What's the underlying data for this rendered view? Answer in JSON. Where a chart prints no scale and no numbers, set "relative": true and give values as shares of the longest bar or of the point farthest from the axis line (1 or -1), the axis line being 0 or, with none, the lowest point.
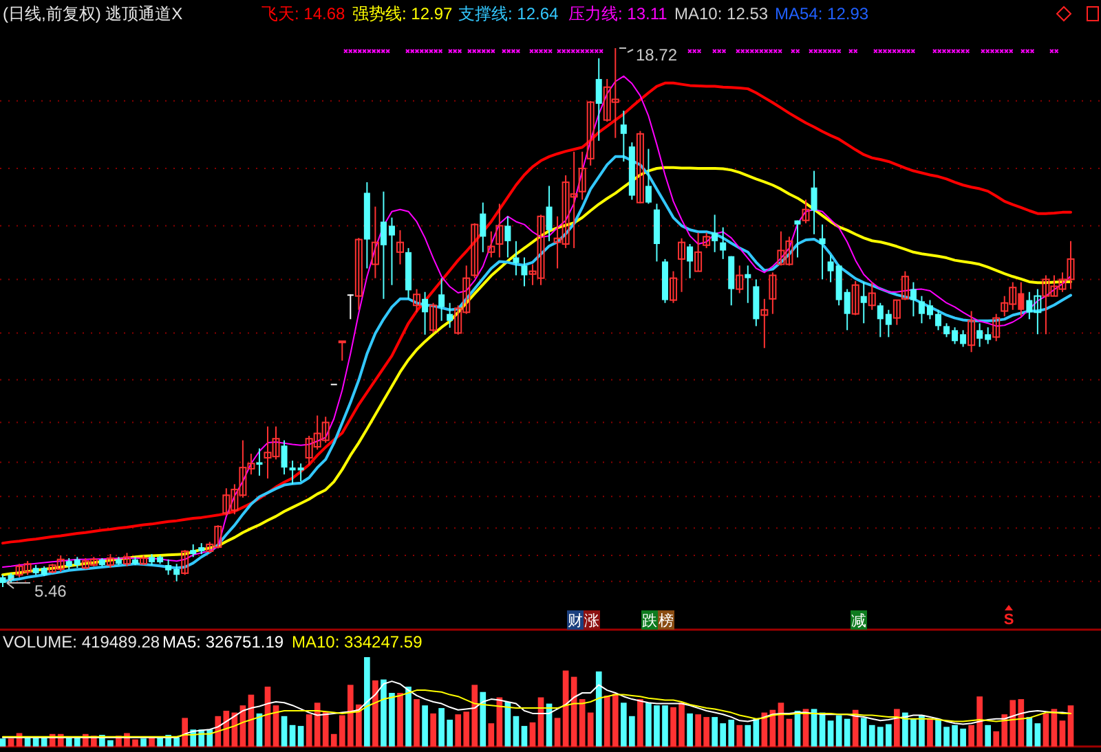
{
  "chart_data": [
    {
      "type": "candlestick",
      "title": "(日线,前复权) 逃顶通道X",
      "categories": [
        null,
        null,
        null,
        null,
        null,
        null,
        null,
        null,
        null,
        null,
        null,
        null,
        null,
        null,
        null,
        null,
        null,
        null,
        null,
        null,
        null,
        null,
        null,
        null,
        null,
        null,
        null,
        null,
        null,
        null,
        null,
        null,
        null,
        null,
        null,
        null,
        null,
        null,
        null,
        null,
        null,
        null,
        null,
        null,
        null,
        null,
        null,
        null,
        null,
        null,
        null,
        null,
        null,
        null,
        null,
        null,
        null,
        null,
        null,
        null,
        null,
        null,
        null,
        null,
        null,
        null,
        null,
        null,
        null,
        null,
        null,
        null,
        null,
        null,
        null,
        null,
        null,
        null,
        null,
        null,
        null,
        null,
        null,
        null,
        null,
        null,
        null,
        null,
        null,
        null,
        null,
        null,
        null,
        null,
        null,
        null,
        null,
        null,
        null,
        null,
        null,
        null,
        null,
        null,
        null,
        null,
        null,
        null,
        null,
        null,
        null,
        null,
        null,
        null,
        null,
        null,
        null,
        null,
        null,
        null,
        null,
        null,
        null,
        null,
        null,
        null,
        null,
        null,
        null,
        null
      ],
      "ohlc": [
        [
          5.7,
          5.76,
          5.46,
          5.56
        ],
        [
          5.76,
          5.8,
          5.56,
          5.63
        ],
        [
          5.76,
          6.03,
          5.7,
          5.97
        ],
        [
          5.83,
          6.1,
          5.76,
          6.03
        ],
        [
          5.93,
          6.0,
          5.76,
          5.8
        ],
        [
          5.93,
          5.97,
          5.73,
          5.76
        ],
        [
          5.83,
          6.03,
          5.8,
          6.0
        ],
        [
          5.9,
          6.24,
          5.83,
          6.14
        ],
        [
          6.1,
          6.17,
          5.9,
          5.97
        ],
        [
          6.14,
          6.2,
          5.93,
          6.0
        ],
        [
          5.93,
          6.17,
          5.9,
          6.1
        ],
        [
          6.0,
          6.2,
          5.97,
          6.14
        ],
        [
          6.14,
          6.17,
          5.97,
          6.0
        ],
        [
          6.0,
          6.27,
          5.93,
          6.17
        ],
        [
          6.14,
          6.2,
          6.0,
          6.03
        ],
        [
          6.03,
          6.3,
          5.97,
          6.2
        ],
        [
          6.14,
          6.2,
          6.0,
          6.03
        ],
        [
          6.03,
          6.24,
          6.0,
          6.17
        ],
        [
          6.2,
          6.27,
          6.0,
          6.07
        ],
        [
          6.2,
          6.24,
          6.03,
          6.07
        ],
        [
          6.0,
          6.14,
          5.76,
          5.87
        ],
        [
          5.9,
          6.03,
          5.6,
          5.76
        ],
        [
          5.8,
          6.37,
          5.76,
          6.34
        ],
        [
          6.37,
          6.51,
          6.2,
          6.27
        ],
        [
          6.44,
          6.54,
          6.27,
          6.34
        ],
        [
          6.34,
          6.57,
          6.3,
          6.51
        ],
        [
          6.44,
          6.98,
          6.41,
          6.95
        ],
        [
          7.28,
          7.89,
          7.22,
          7.72
        ],
        [
          7.35,
          7.99,
          7.25,
          7.86
        ],
        [
          7.72,
          9.07,
          7.66,
          8.4
        ],
        [
          8.37,
          8.74,
          8.23,
          8.5
        ],
        [
          8.53,
          8.87,
          8.2,
          8.47
        ],
        [
          8.64,
          9.41,
          8.13,
          8.77
        ],
        [
          8.67,
          9.41,
          8.6,
          9.11
        ],
        [
          8.94,
          9.07,
          8.23,
          8.4
        ],
        [
          8.4,
          8.57,
          7.99,
          8.33
        ],
        [
          8.4,
          8.5,
          8.06,
          8.33
        ],
        [
          8.64,
          9.18,
          8.47,
          9.11
        ],
        [
          8.91,
          9.68,
          8.84,
          9.24
        ],
        [
          9.07,
          9.65,
          9.01,
          9.51
        ],
        [
          10.46,
          10.46,
          10.46,
          10.46
        ],
        [
          11.49,
          11.51,
          11.03,
          11.51
        ],
        [
          12.66,
          12.66,
          12.05,
          12.66
        ],
        [
          12.62,
          14.05,
          12.28,
          14.01
        ],
        [
          15.16,
          15.42,
          13.3,
          14.01
        ],
        [
          13.4,
          14.82,
          13.06,
          13.94
        ],
        [
          14.45,
          15.19,
          12.55,
          13.87
        ],
        [
          14.35,
          14.55,
          12.89,
          14.11
        ],
        [
          13.7,
          14.24,
          13.4,
          13.94
        ],
        [
          13.7,
          13.8,
          12.55,
          12.76
        ],
        [
          12.39,
          12.79,
          12.22,
          12.66
        ],
        [
          12.55,
          12.72,
          11.67,
          12.22
        ],
        [
          11.78,
          12.45,
          11.71,
          12.39
        ],
        [
          12.66,
          13.06,
          12.01,
          12.35
        ],
        [
          12.18,
          12.45,
          11.84,
          12.01
        ],
        [
          11.71,
          12.39,
          11.67,
          12.32
        ],
        [
          12.22,
          13.37,
          12.18,
          13.06
        ],
        [
          13.13,
          14.41,
          13.06,
          14.38
        ],
        [
          14.65,
          14.92,
          13.7,
          14.08
        ],
        [
          13.7,
          14.21,
          13.57,
          13.84
        ],
        [
          13.9,
          14.89,
          13.57,
          14.35
        ],
        [
          14.35,
          14.58,
          13.57,
          13.97
        ],
        [
          13.57,
          13.97,
          13.13,
          13.43
        ],
        [
          13.37,
          13.57,
          12.86,
          13.13
        ],
        [
          13.16,
          13.4,
          12.89,
          13.23
        ],
        [
          13.06,
          14.62,
          12.89,
          14.58
        ],
        [
          14.82,
          15.33,
          13.97,
          14.24
        ],
        [
          13.94,
          14.58,
          13.3,
          14.04
        ],
        [
          13.9,
          15.59,
          13.8,
          15.42
        ],
        [
          15.06,
          16.17,
          13.8,
          15.13
        ],
        [
          15.19,
          16.17,
          14.99,
          15.76
        ],
        [
          16.0,
          17.42,
          15.83,
          17.39
        ],
        [
          17.96,
          18.47,
          16.44,
          17.35
        ],
        [
          16.95,
          17.96,
          16.91,
          17.76
        ],
        [
          17.39,
          18.72,
          16.51,
          17.46
        ],
        [
          16.84,
          17.18,
          15.93,
          16.61
        ],
        [
          16.3,
          16.4,
          14.99,
          15.09
        ],
        [
          14.92,
          16.68,
          14.9,
          16.61
        ],
        [
          15.33,
          16.24,
          14.89,
          14.92
        ],
        [
          14.75,
          14.89,
          13.47,
          13.9
        ],
        [
          13.47,
          13.53,
          12.45,
          12.52
        ],
        [
          12.52,
          13.23,
          12.45,
          13.06
        ],
        [
          13.53,
          14.04,
          12.72,
          13.94
        ],
        [
          13.84,
          13.9,
          13.06,
          13.47
        ],
        [
          13.23,
          14.18,
          13.23,
          13.7
        ],
        [
          13.87,
          14.18,
          13.8,
          14.08
        ],
        [
          14.18,
          14.62,
          13.7,
          13.97
        ],
        [
          13.94,
          14.31,
          13.53,
          13.74
        ],
        [
          13.6,
          13.6,
          12.39,
          12.79
        ],
        [
          12.79,
          13.37,
          12.69,
          13.13
        ],
        [
          13.16,
          13.37,
          12.45,
          13.06
        ],
        [
          12.86,
          13.03,
          11.88,
          12.05
        ],
        [
          12.15,
          12.55,
          11.34,
          12.28
        ],
        [
          12.55,
          13.2,
          12.18,
          13.13
        ],
        [
          13.4,
          14.21,
          13.37,
          13.74
        ],
        [
          13.4,
          14.08,
          13.37,
          13.97
        ],
        [
          14.48,
          14.48,
          13.57,
          14.38
        ],
        [
          14.48,
          14.99,
          14.41,
          14.75
        ],
        [
          15.29,
          15.7,
          14.14,
          14.72
        ],
        [
          14.04,
          14.38,
          13.03,
          13.9
        ],
        [
          13.47,
          13.63,
          12.96,
          13.23
        ],
        [
          13.37,
          13.4,
          12.39,
          12.52
        ],
        [
          12.72,
          12.79,
          11.78,
          12.18
        ],
        [
          12.18,
          12.99,
          12.15,
          12.89
        ],
        [
          12.62,
          12.96,
          11.95,
          12.45
        ],
        [
          12.39,
          12.96,
          12.28,
          12.69
        ],
        [
          12.39,
          12.45,
          11.61,
          12.05
        ],
        [
          12.18,
          12.28,
          11.61,
          11.91
        ],
        [
          12.08,
          12.52,
          11.91,
          12.52
        ],
        [
          12.55,
          13.23,
          12.52,
          13.1
        ],
        [
          12.79,
          12.96,
          12.12,
          12.52
        ],
        [
          12.49,
          12.62,
          11.95,
          12.18
        ],
        [
          12.39,
          12.52,
          12.05,
          12.15
        ],
        [
          12.18,
          12.28,
          11.78,
          11.88
        ],
        [
          11.88,
          11.95,
          11.61,
          11.68
        ],
        [
          11.78,
          11.85,
          11.44,
          11.51
        ],
        [
          11.68,
          11.78,
          11.37,
          11.44
        ],
        [
          11.41,
          12.25,
          11.24,
          12.01
        ],
        [
          11.78,
          11.95,
          11.37,
          11.57
        ],
        [
          11.68,
          11.85,
          11.44,
          11.54
        ],
        [
          11.61,
          12.18,
          11.51,
          12.08
        ],
        [
          12.25,
          12.62,
          12.12,
          12.45
        ],
        [
          12.42,
          12.96,
          12.28,
          12.83
        ],
        [
          12.69,
          12.96,
          12.12,
          12.28
        ],
        [
          12.52,
          12.72,
          12.05,
          12.22
        ],
        [
          12.22,
          12.79,
          11.68,
          12.62
        ],
        [
          12.62,
          13.13,
          11.68,
          13.03
        ],
        [
          12.62,
          13.13,
          12.62,
          12.86
        ],
        [
          12.79,
          13.2,
          12.72,
          13.03
        ],
        [
          13.03,
          13.97,
          12.79,
          13.53
        ]
      ],
      "colors": [
        "#54ffff",
        "#54ffff",
        "#ff3232",
        "#ff3232",
        "#54ffff",
        "#54ffff",
        "#ff3232",
        "#ff3232",
        "#54ffff",
        "#54ffff",
        "#ff3232",
        "#ff3232",
        "#54ffff",
        "#ff3232",
        "#54ffff",
        "#ff3232",
        "#54ffff",
        "#ff3232",
        "#54ffff",
        "#54ffff",
        "#54ffff",
        "#54ffff",
        "#ff3232",
        "#54ffff",
        "#54ffff",
        "#ff3232",
        "#ff3232",
        "#ff3232",
        "#ff3232",
        "#ff3232",
        "#ff3232",
        "#54ffff",
        "#ff3232",
        "#ff3232",
        "#54ffff",
        "#54ffff",
        "#54ffff",
        "#ff3232",
        "#ff3232",
        "#ff3232",
        "#ffffff",
        "#ff3232",
        "#ffffff",
        "#ff3232",
        "#54ffff",
        "#ff3232",
        "#54ffff",
        "#54ffff",
        "#ff3232",
        "#54ffff",
        "#ff3232",
        "#54ffff",
        "#ff3232",
        "#54ffff",
        "#54ffff",
        "#ff3232",
        "#ff3232",
        "#ff3232",
        "#54ffff",
        "#ff3232",
        "#ff3232",
        "#54ffff",
        "#54ffff",
        "#54ffff",
        "#ff3232",
        "#ff3232",
        "#54ffff",
        "#ff3232",
        "#ff3232",
        "#ff3232",
        "#ff3232",
        "#ff3232",
        "#54ffff",
        "#ff3232",
        "#ff3232",
        "#54ffff",
        "#54ffff",
        "#ff3232",
        "#54ffff",
        "#54ffff",
        "#54ffff",
        "#ff3232",
        "#ff3232",
        "#54ffff",
        "#ff3232",
        "#ff3232",
        "#54ffff",
        "#54ffff",
        "#54ffff",
        "#ff3232",
        "#54ffff",
        "#54ffff",
        "#ff3232",
        "#ff3232",
        "#ff3232",
        "#ff3232",
        "#54ffff",
        "#ff3232",
        "#54ffff",
        "#54ffff",
        "#54ffff",
        "#54ffff",
        "#54ffff",
        "#ff3232",
        "#54ffff",
        "#ff3232",
        "#54ffff",
        "#54ffff",
        "#ff3232",
        "#ff3232",
        "#54ffff",
        "#54ffff",
        "#54ffff",
        "#54ffff",
        "#54ffff",
        "#54ffff",
        "#54ffff",
        "#ff3232",
        "#54ffff",
        "#54ffff",
        "#ff3232",
        "#ff3232",
        "#ff3232",
        "#ff3232",
        "#54ffff",
        "#54ffff",
        "#ff3232",
        "#ff3232",
        "#ff3232",
        "#ff3232"
      ],
      "series": [
        {
          "name": "飞天: 14.68",
          "type": "line",
          "color": "#ff0000",
          "values": [
            6.54,
            6.57,
            6.59,
            6.62,
            6.64,
            6.67,
            6.7,
            6.72,
            6.75,
            6.78,
            6.8,
            6.83,
            6.86,
            6.88,
            6.91,
            6.93,
            6.96,
            6.99,
            7.01,
            7.04,
            7.07,
            7.09,
            7.12,
            7.15,
            7.17,
            7.2,
            7.23,
            7.27,
            7.32,
            7.42,
            7.52,
            7.64,
            7.78,
            7.92,
            8.04,
            8.14,
            8.3,
            8.47,
            8.7,
            8.9,
            9.08,
            9.25,
            9.6,
            9.95,
            10.25,
            10.55,
            10.85,
            11.15,
            11.55,
            11.95,
            12.25,
            12.5,
            12.75,
            13.0,
            13.25,
            13.5,
            13.72,
            13.95,
            14.2,
            14.45,
            14.75,
            15.05,
            15.35,
            15.6,
            15.8,
            15.95,
            16.05,
            16.12,
            16.18,
            16.23,
            16.28,
            16.45,
            16.65,
            16.8,
            16.95,
            17.1,
            17.28,
            17.45,
            17.62,
            17.78,
            17.86,
            17.86,
            17.83,
            17.8,
            17.79,
            17.78,
            17.78,
            17.76,
            17.75,
            17.74,
            17.72,
            17.62,
            17.5,
            17.38,
            17.25,
            17.12,
            17.0,
            16.88,
            16.78,
            16.67,
            16.57,
            16.48,
            16.35,
            16.22,
            16.1,
            16.02,
            15.98,
            15.93,
            15.85,
            15.77,
            15.7,
            15.65,
            15.6,
            15.56,
            15.5,
            15.42,
            15.35,
            15.3,
            15.26,
            15.2,
            15.08,
            14.95,
            14.87,
            14.8,
            14.72,
            14.65,
            14.65,
            14.66,
            14.68,
            14.68
          ]
        },
        {
          "name": "强势线: 12.97",
          "type": "line",
          "color": "#ffff00",
          "values": [
            5.76,
            5.79,
            5.81,
            5.84,
            5.87,
            5.9,
            5.92,
            5.95,
            5.98,
            6.01,
            6.04,
            6.06,
            6.09,
            6.12,
            6.15,
            6.17,
            6.2,
            6.22,
            6.23,
            6.24,
            6.25,
            6.26,
            6.27,
            6.33,
            6.38,
            6.42,
            6.47,
            6.58,
            6.68,
            6.8,
            6.9,
            6.99,
            7.1,
            7.2,
            7.32,
            7.42,
            7.52,
            7.62,
            7.75,
            7.85,
            8.05,
            8.35,
            8.7,
            9.01,
            9.35,
            9.7,
            10.05,
            10.4,
            10.75,
            11.05,
            11.3,
            11.5,
            11.68,
            11.85,
            12.0,
            12.22,
            12.45,
            12.68,
            12.9,
            13.12,
            13.3,
            13.48,
            13.65,
            13.8,
            13.95,
            14.1,
            14.22,
            14.3,
            14.36,
            14.42,
            14.55,
            14.72,
            14.88,
            15.02,
            15.15,
            15.3,
            15.45,
            15.6,
            15.7,
            15.76,
            15.78,
            15.78,
            15.77,
            15.77,
            15.76,
            15.76,
            15.76,
            15.75,
            15.72,
            15.66,
            15.58,
            15.5,
            15.43,
            15.35,
            15.25,
            15.13,
            15.03,
            14.9,
            14.75,
            14.6,
            14.45,
            14.32,
            14.24,
            14.14,
            14.05,
            13.98,
            13.95,
            13.9,
            13.84,
            13.77,
            13.7,
            13.66,
            13.63,
            13.6,
            13.56,
            13.5,
            13.47,
            13.44,
            13.4,
            13.33,
            13.25,
            13.17,
            13.1,
            13.04,
            12.97,
            12.95,
            12.95,
            12.96,
            12.97,
            12.97
          ]
        },
        {
          "name": "支撑线: 12.64",
          "type": "line",
          "color": "#33c8ff",
          "values": [
            5.6,
            5.63,
            5.66,
            5.7,
            5.73,
            5.76,
            5.8,
            5.83,
            5.87,
            5.89,
            5.91,
            5.93,
            5.95,
            5.97,
            5.99,
            6.01,
            6.03,
            6.02,
            6.0,
            5.98,
            5.95,
            5.93,
            5.95,
            6.05,
            6.2,
            6.32,
            6.5,
            6.75,
            6.98,
            7.25,
            7.5,
            7.68,
            7.78,
            7.88,
            7.97,
            8.0,
            8.02,
            8.15,
            8.4,
            8.6,
            9.0,
            9.5,
            10.0,
            10.55,
            11.2,
            11.7,
            12.05,
            12.35,
            12.55,
            12.55,
            12.45,
            12.4,
            12.38,
            12.33,
            12.28,
            12.3,
            12.55,
            12.8,
            13.05,
            13.3,
            13.47,
            13.45,
            13.4,
            13.38,
            13.45,
            13.65,
            13.85,
            13.95,
            14.15,
            14.4,
            14.8,
            15.25,
            15.55,
            15.85,
            16.05,
            16.05,
            15.95,
            15.85,
            15.6,
            15.25,
            14.9,
            14.55,
            14.35,
            14.25,
            14.2,
            14.2,
            14.15,
            14.05,
            13.92,
            13.8,
            13.7,
            13.45,
            13.25,
            13.28,
            13.45,
            13.65,
            13.9,
            14.0,
            14.02,
            13.9,
            13.65,
            13.35,
            13.2,
            13.05,
            12.95,
            12.88,
            12.8,
            12.72,
            12.65,
            12.6,
            12.55,
            12.45,
            12.35,
            12.25,
            12.15,
            12.08,
            12.03,
            12.01,
            12.01,
            12.01,
            12.02,
            12.05,
            12.15,
            12.2,
            12.25,
            12.25,
            12.3,
            12.4,
            12.52,
            12.64
          ]
        },
        {
          "name": "压力线: 13.11",
          "type": "line",
          "color": "#ff00ff",
          "values": [
            5.95,
            5.97,
            6.0,
            6.02,
            6.04,
            6.06,
            6.08,
            6.1,
            6.12,
            6.14,
            6.14,
            6.15,
            6.15,
            6.16,
            6.16,
            6.17,
            6.17,
            6.17,
            6.16,
            6.15,
            6.12,
            6.1,
            6.14,
            6.25,
            6.3,
            6.35,
            6.45,
            7.2,
            7.7,
            8.06,
            8.5,
            8.8,
            9.01,
            9.03,
            9.0,
            8.97,
            8.95,
            8.97,
            9.05,
            9.14,
            9.6,
            10.3,
            11.2,
            12.2,
            13.1,
            13.8,
            14.35,
            14.7,
            14.75,
            14.7,
            14.45,
            14.05,
            13.55,
            13.1,
            12.85,
            12.7,
            12.75,
            13.0,
            13.35,
            13.9,
            14.4,
            14.58,
            14.45,
            14.38,
            14.2,
            14.07,
            14.1,
            14.3,
            14.48,
            14.9,
            15.7,
            16.45,
            17.1,
            17.6,
            17.9,
            18.03,
            17.85,
            17.55,
            17.05,
            16.35,
            15.6,
            14.95,
            14.5,
            14.1,
            13.9,
            13.95,
            14.15,
            14.2,
            14.05,
            13.8,
            13.55,
            13.3,
            13.2,
            13.35,
            13.55,
            13.8,
            14.4,
            14.7,
            14.75,
            14.7,
            14.5,
            14.3,
            13.95,
            13.5,
            13.15,
            12.95,
            12.8,
            12.72,
            12.72,
            12.75,
            12.78,
            12.79,
            12.75,
            12.6,
            12.45,
            12.35,
            12.22,
            12.1,
            12.0,
            11.95,
            11.88,
            11.9,
            11.98,
            12.1,
            12.3,
            12.5,
            12.62,
            12.78,
            12.92,
            13.11
          ]
        }
      ],
      "yticks": [
        {
          "value": 5.6,
          "label": null
        },
        {
          "value": 6.24,
          "label": null
        },
        {
          "value": 6.91,
          "label": null
        },
        {
          "value": 7.69,
          "label": null
        },
        {
          "value": 8.53,
          "label": null
        },
        {
          "value": 9.51,
          "label": null
        },
        {
          "value": 10.56,
          "label": null
        },
        {
          "value": 11.71,
          "label": null
        },
        {
          "value": 13.03,
          "label": null
        },
        {
          "value": 14.35,
          "label": null
        },
        {
          "value": 15.76,
          "label": null
        },
        {
          "value": 17.42,
          "label": null
        }
      ],
      "grid": "y",
      "legend": "top",
      "annotations": [
        "MA10: 12.53",
        "MA54: 12.93",
        "财",
        "涨",
        "跌",
        "榜",
        "减",
        "S",
        "18.72",
        "5.46"
      ]
    },
    {
      "type": "bar",
      "relative": true,
      "legend": "top",
      "title": "VOLUME: 419489.28",
      "categories": [
        null,
        null,
        null,
        null,
        null,
        null,
        null,
        null,
        null,
        null,
        null,
        null,
        null,
        null,
        null,
        null,
        null,
        null,
        null,
        null,
        null,
        null,
        null,
        null,
        null,
        null,
        null,
        null,
        null,
        null,
        null,
        null,
        null,
        null,
        null,
        null,
        null,
        null,
        null,
        null,
        null,
        null,
        null,
        null,
        null,
        null,
        null,
        null,
        null,
        null,
        null,
        null,
        null,
        null,
        null,
        null,
        null,
        null,
        null,
        null,
        null,
        null,
        null,
        null,
        null,
        null,
        null,
        null,
        null,
        null,
        null,
        null,
        null,
        null,
        null,
        null,
        null,
        null,
        null,
        null,
        null,
        null,
        null,
        null,
        null,
        null,
        null,
        null,
        null,
        null,
        null,
        null,
        null,
        null,
        null,
        null,
        null,
        null,
        null,
        null,
        null,
        null,
        null,
        null,
        null,
        null,
        null,
        null,
        null,
        null,
        null,
        null,
        null,
        null,
        null,
        null,
        null,
        null,
        null,
        null,
        null,
        null,
        null,
        null,
        null,
        null,
        null,
        null,
        null,
        null
      ],
      "series": [
        {
          "type": "bar",
          "values": [
            0.09,
            0.09,
            0.15,
            0.1,
            0.1,
            0.1,
            0.14,
            0.14,
            0.1,
            0.1,
            0.14,
            0.12,
            0.13,
            0.07,
            0.12,
            0.15,
            0.08,
            0.09,
            0.1,
            0.1,
            0.13,
            0.1,
            0.32,
            0.19,
            0.19,
            0.19,
            0.34,
            0.4,
            0.38,
            0.46,
            0.58,
            0.37,
            0.67,
            0.46,
            0.34,
            0.24,
            0.23,
            0.36,
            0.49,
            0.39,
            0.14,
            0.35,
            0.69,
            0.47,
            1,
            0.74,
            0.75,
            0.6,
            0.6,
            0.67,
            0.53,
            0.46,
            0.37,
            0.43,
            0.3,
            0.36,
            0.39,
            0.69,
            0.61,
            0.26,
            0.55,
            0.5,
            0.34,
            0.23,
            0.27,
            0.55,
            0.48,
            0.32,
            0.85,
            0.78,
            0.53,
            0.38,
            0.84,
            0.57,
            0.59,
            0.49,
            0.34,
            0.53,
            0.49,
            0.46,
            0.46,
            0.44,
            0.49,
            0.37,
            0.36,
            0.33,
            0.33,
            0.26,
            0.3,
            0.24,
            0.24,
            0.31,
            0.38,
            0.41,
            0.49,
            0.31,
            0.4,
            0.42,
            0.42,
            0.38,
            0.29,
            0.35,
            0.31,
            0.41,
            0.32,
            0.24,
            0.22,
            0.25,
            0.42,
            0.38,
            0.31,
            0.35,
            0.31,
            0.31,
            0.22,
            0.24,
            0.2,
            0.24,
            0.56,
            0.24,
            0.17,
            0.36,
            0.52,
            0.53,
            0.33,
            0.26,
            0.37,
            0.42,
            0.29,
            0.46
          ],
          "colors": [
            "#54ffff",
            "#ff3232",
            "#ff3232",
            "#54ffff",
            "#54ffff",
            "#54ffff",
            "#ff3232",
            "#ff3232",
            "#54ffff",
            "#54ffff",
            "#ff3232",
            "#ff3232",
            "#54ffff",
            "#54ffff",
            "#ff3232",
            "#ff3232",
            "#ff3232",
            "#54ffff",
            "#ff3232",
            "#54ffff",
            "#54ffff",
            "#54ffff",
            "#ff3232",
            "#54ffff",
            "#54ffff",
            "#54ffff",
            "#ff3232",
            "#ff3232",
            "#ff3232",
            "#ff3232",
            "#ff3232",
            "#54ffff",
            "#ff3232",
            "#ff3232",
            "#54ffff",
            "#54ffff",
            "#54ffff",
            "#ff3232",
            "#ff3232",
            "#ff3232",
            "#ff3232",
            "#ff3232",
            "#ff3232",
            "#ff3232",
            "#54ffff",
            "#ff3232",
            "#54ffff",
            "#54ffff",
            "#ff3232",
            "#54ffff",
            "#ff3232",
            "#54ffff",
            "#ff3232",
            "#54ffff",
            "#54ffff",
            "#ff3232",
            "#ff3232",
            "#ff3232",
            "#54ffff",
            "#ff3232",
            "#ff3232",
            "#54ffff",
            "#54ffff",
            "#54ffff",
            "#ff3232",
            "#ff3232",
            "#54ffff",
            "#ff3232",
            "#ff3232",
            "#ff3232",
            "#ff3232",
            "#ff3232",
            "#54ffff",
            "#ff3232",
            "#ff3232",
            "#54ffff",
            "#54ffff",
            "#ff3232",
            "#54ffff",
            "#54ffff",
            "#54ffff",
            "#ff3232",
            "#ff3232",
            "#54ffff",
            "#ff3232",
            "#ff3232",
            "#54ffff",
            "#54ffff",
            "#54ffff",
            "#ff3232",
            "#54ffff",
            "#54ffff",
            "#ff3232",
            "#ff3232",
            "#ff3232",
            "#ff3232",
            "#54ffff",
            "#ff3232",
            "#54ffff",
            "#54ffff",
            "#54ffff",
            "#54ffff",
            "#54ffff",
            "#ff3232",
            "#54ffff",
            "#54ffff",
            "#54ffff",
            "#54ffff",
            "#ff3232",
            "#54ffff",
            "#54ffff",
            "#54ffff",
            "#ff3232",
            "#54ffff",
            "#54ffff",
            "#54ffff",
            "#54ffff",
            "#ff3232",
            "#ff3232",
            "#54ffff",
            "#ff3232",
            "#ff3232",
            "#ff3232",
            "#ff3232",
            "#54ffff",
            "#54ffff",
            "#ff3232",
            "#ff3232",
            "#ff3232",
            "#ff3232"
          ]
        },
        {
          "name": "MA5: 326751.19",
          "type": "line",
          "color": "#ffffff",
          "values": [
            0.1,
            0.1,
            0.1,
            0.1,
            0.1,
            0.1,
            0.1,
            0.1,
            0.1,
            0.1,
            0.1,
            0.1,
            0.1,
            0.1,
            0.1,
            0.1,
            0.1,
            0.1,
            0.1,
            0.1,
            0.1,
            0.1,
            0.14,
            0.17,
            0.18,
            0.19,
            0.22,
            0.28,
            0.34,
            0.4,
            0.43,
            0.45,
            0.48,
            0.5,
            0.49,
            0.46,
            0.42,
            0.38,
            0.35,
            0.36,
            0.37,
            0.38,
            0.39,
            0.41,
            0.5,
            0.58,
            0.7,
            0.73,
            0.7,
            0.63,
            0.57,
            0.53,
            0.5,
            0.48,
            0.44,
            0.41,
            0.42,
            0.43,
            0.5,
            0.53,
            0.52,
            0.5,
            0.48,
            0.4,
            0.37,
            0.37,
            0.37,
            0.42,
            0.47,
            0.55,
            0.6,
            0.6,
            0.69,
            0.63,
            0.6,
            0.56,
            0.53,
            0.51,
            0.49,
            0.48,
            0.48,
            0.48,
            0.48,
            0.46,
            0.43,
            0.4,
            0.38,
            0.36,
            0.33,
            0.29,
            0.28,
            0.3,
            0.33,
            0.36,
            0.37,
            0.37,
            0.38,
            0.38,
            0.37,
            0.36,
            0.36,
            0.36,
            0.36,
            0.34,
            0.33,
            0.31,
            0.29,
            0.3,
            0.32,
            0.33,
            0.35,
            0.35,
            0.33,
            0.31,
            0.28,
            0.26,
            0.25,
            0.26,
            0.28,
            0.3,
            0.31,
            0.31,
            0.34,
            0.37,
            0.39,
            0.4,
            0.39,
            0.38,
            0.38,
            0.37
          ]
        },
        {
          "name": "MA10: 334247.59",
          "type": "line",
          "color": "#ffff00",
          "values": [
            0.11,
            0.11,
            0.11,
            0.11,
            0.11,
            0.11,
            0.11,
            0.11,
            0.11,
            0.11,
            0.11,
            0.11,
            0.11,
            0.11,
            0.11,
            0.11,
            0.11,
            0.11,
            0.11,
            0.11,
            0.11,
            0.11,
            0.13,
            0.13,
            0.14,
            0.14,
            0.17,
            0.2,
            0.23,
            0.27,
            0.3,
            0.33,
            0.36,
            0.38,
            0.4,
            0.4,
            0.4,
            0.4,
            0.4,
            0.39,
            0.38,
            0.37,
            0.38,
            0.39,
            0.45,
            0.49,
            0.53,
            0.55,
            0.57,
            0.6,
            0.63,
            0.63,
            0.62,
            0.61,
            0.58,
            0.56,
            0.52,
            0.48,
            0.47,
            0.46,
            0.45,
            0.44,
            0.43,
            0.43,
            0.43,
            0.43,
            0.43,
            0.43,
            0.46,
            0.48,
            0.48,
            0.5,
            0.54,
            0.56,
            0.58,
            0.58,
            0.57,
            0.56,
            0.54,
            0.53,
            0.52,
            0.52,
            0.5,
            0.47,
            0.45,
            0.43,
            0.42,
            0.4,
            0.38,
            0.35,
            0.33,
            0.31,
            0.32,
            0.35,
            0.36,
            0.36,
            0.37,
            0.37,
            0.37,
            0.37,
            0.37,
            0.36,
            0.36,
            0.36,
            0.35,
            0.35,
            0.34,
            0.33,
            0.33,
            0.31,
            0.31,
            0.31,
            0.31,
            0.3,
            0.29,
            0.28,
            0.28,
            0.29,
            0.3,
            0.29,
            0.28,
            0.29,
            0.3,
            0.31,
            0.32,
            0.35,
            0.38,
            0.38,
            0.37,
            0.37
          ]
        }
      ]
    }
  ]
}
